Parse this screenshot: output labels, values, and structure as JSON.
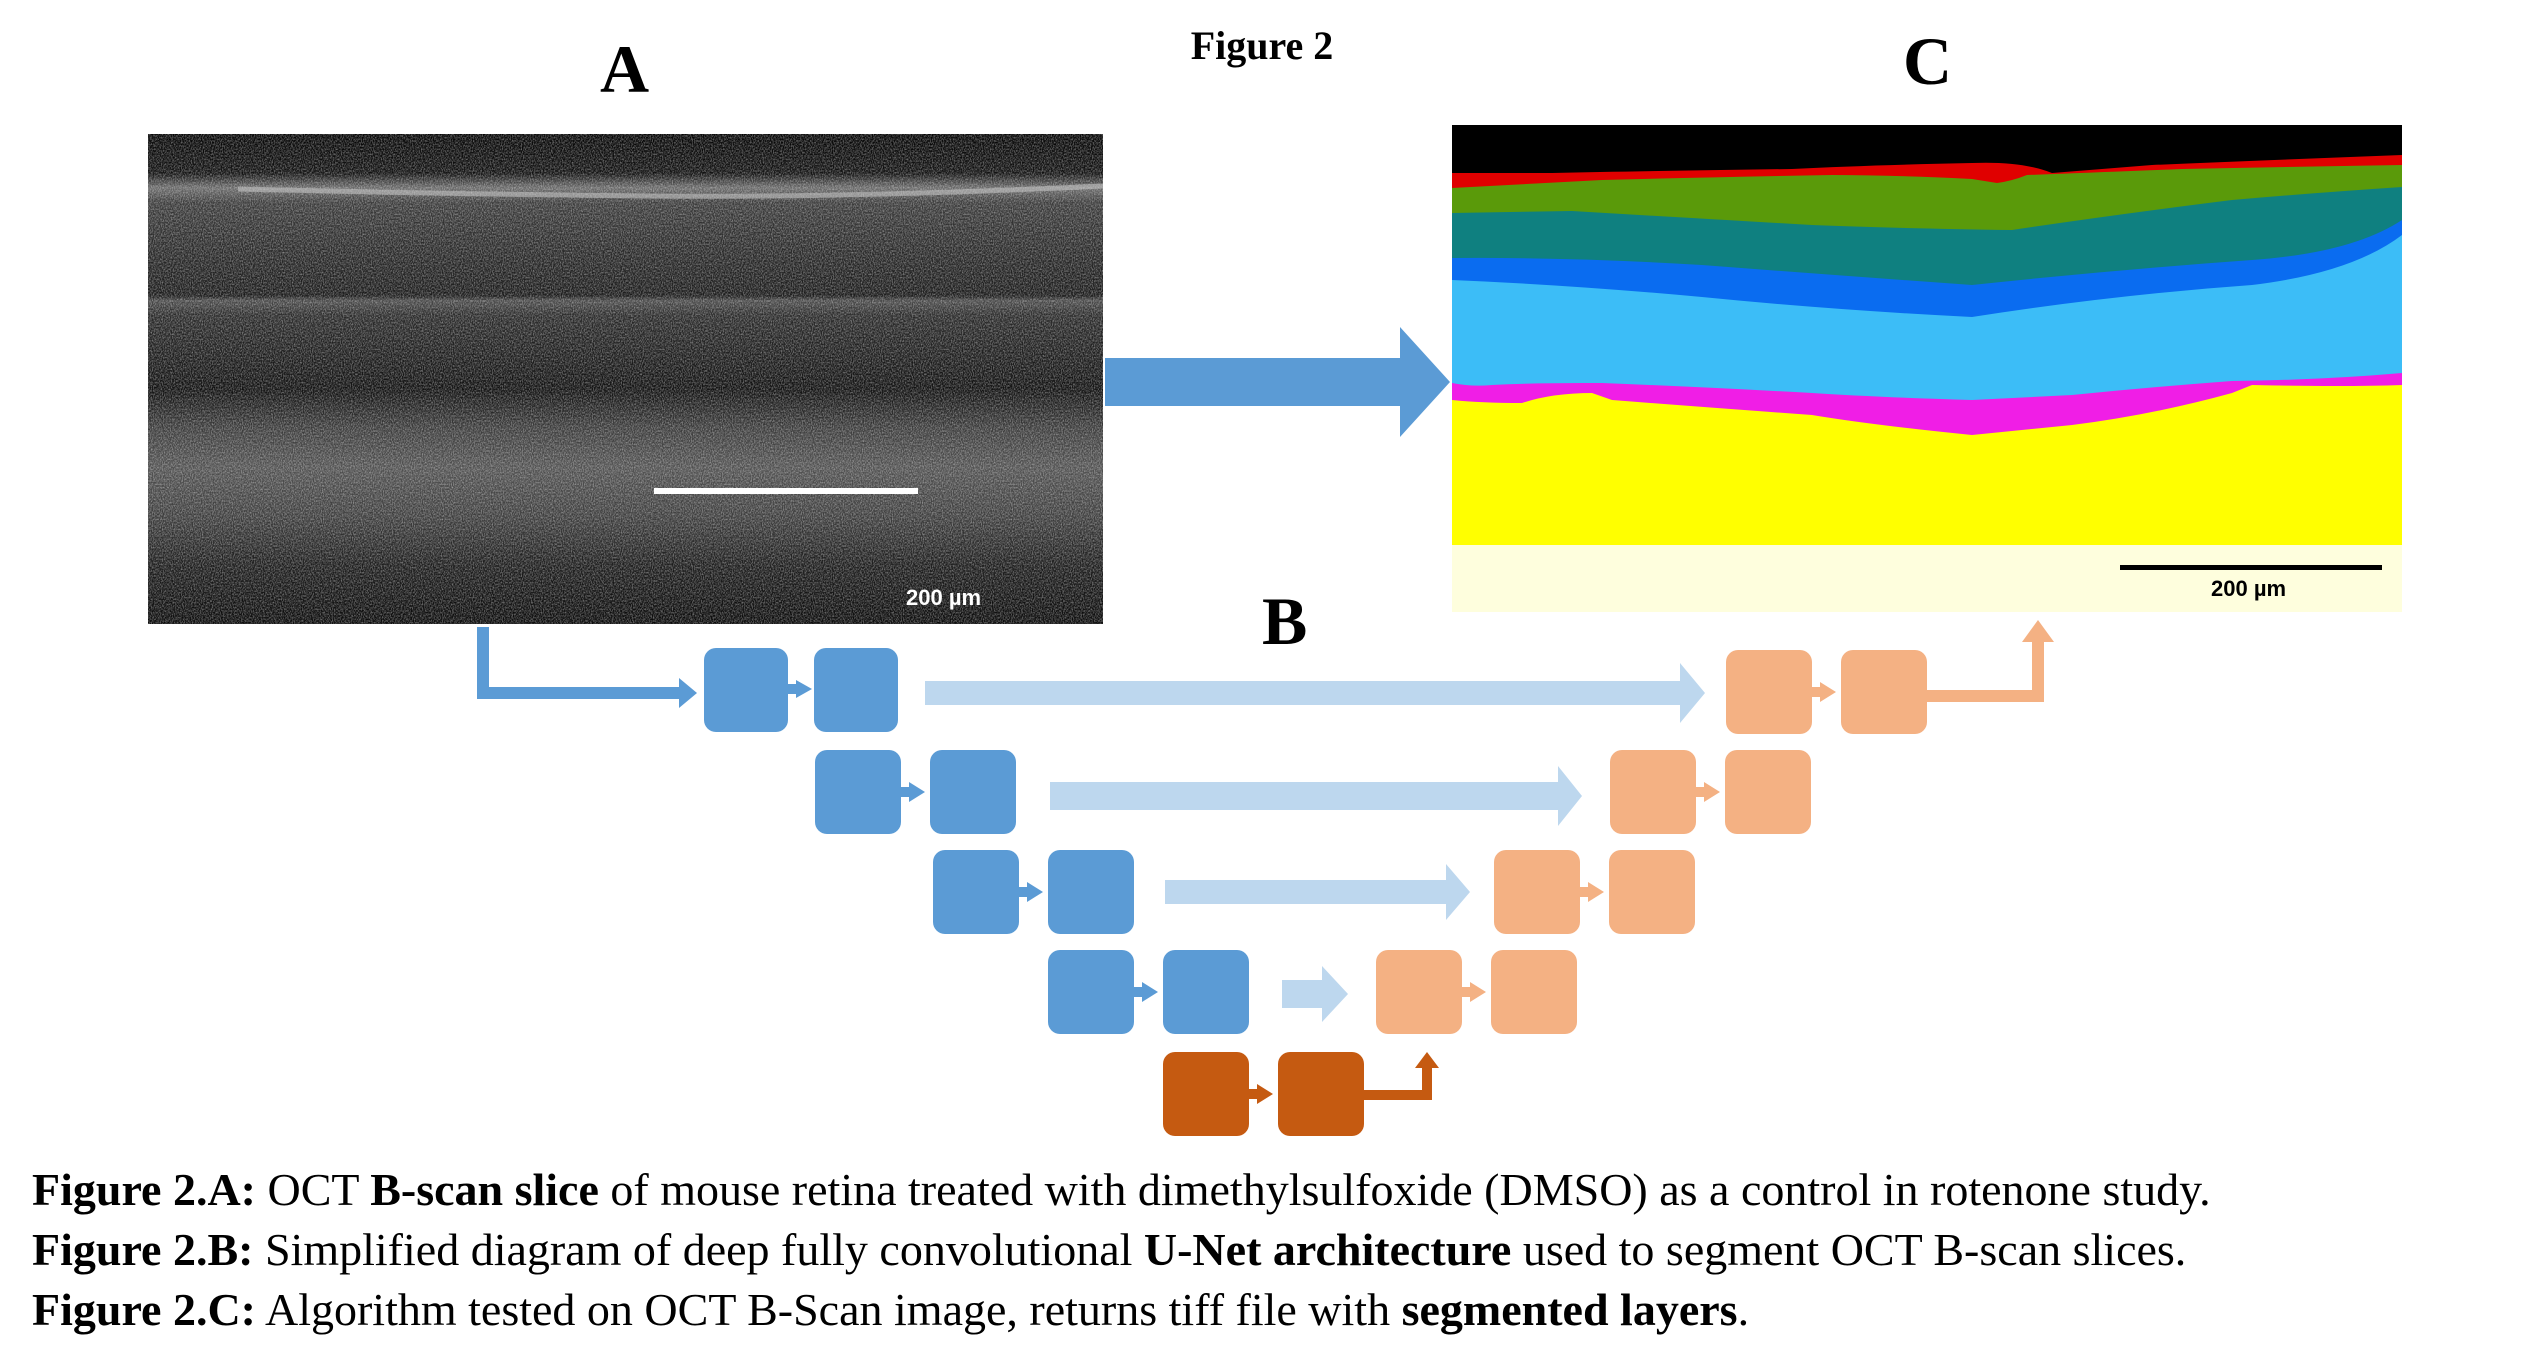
{
  "figure_title": "Figure 2",
  "panels": {
    "a": {
      "letter": "A",
      "scale_bar": "200 µm"
    },
    "b": {
      "letter": "B"
    },
    "c": {
      "letter": "C",
      "scale_bar": "200 µm"
    }
  },
  "colors": {
    "encoder_blue": "#5b9bd5",
    "skip_arrow_blue": "#bdd7ee",
    "decoder_orange": "#f4b183",
    "bottleneck_orange": "#c55a11",
    "big_arrow_blue": "#5b9bd5",
    "layer_black": "#000000",
    "layer_red": "#e00000",
    "layer_green": "#5a9a0a",
    "layer_teal": "#0f8080",
    "layer_blue": "#0a6cf0",
    "layer_lightblue": "#3cbdf7",
    "layer_magenta": "#f01ee6",
    "layer_yellow": "#ffff00",
    "layer_cream": "#fefedd"
  },
  "captions": [
    {
      "label": "Figure 2.A:",
      "t1": " OCT ",
      "b1": "B-scan slice",
      "t2": " of mouse retina treated with dimethylsulfoxide (DMSO) as a control in rotenone study."
    },
    {
      "label": "Figure 2.B:",
      "t1": " Simplified diagram of deep fully convolutional ",
      "b1": "U-Net architecture",
      "t2": " used to segment OCT B-scan slices."
    },
    {
      "label": "Figure 2.C:",
      "t1": " Algorithm tested on OCT B-Scan image, returns tiff file with ",
      "b1": "segmented layers",
      "t2": "."
    }
  ]
}
